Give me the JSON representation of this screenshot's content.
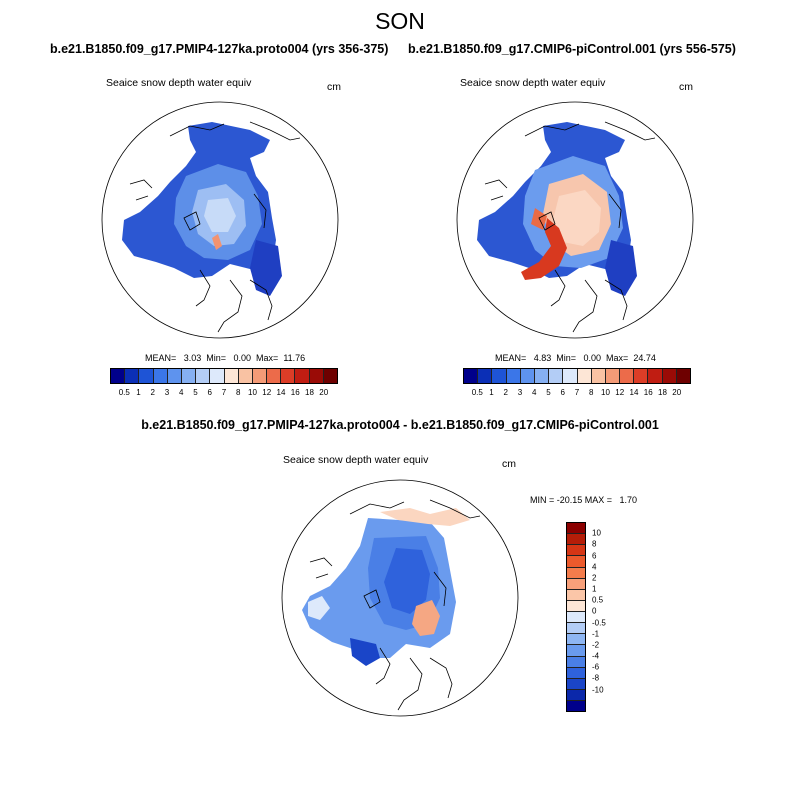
{
  "season": "SON",
  "panels": [
    {
      "case_title": "b.e21.B1850.f09_g17.PMIP4-127ka.proto004 (yrs 356-375)",
      "var_title": "Seaice snow depth water equiv",
      "units": "cm",
      "stats": "MEAN=   3.03  Min=   0.00  Max=  11.76"
    },
    {
      "case_title": "b.e21.B1850.f09_g17.CMIP6-piControl.001 (yrs 556-575)",
      "var_title": "Seaice snow depth water equiv",
      "units": "cm",
      "stats": "MEAN=   4.83  Min=   0.00  Max=  24.74"
    },
    {
      "case_title": "b.e21.B1850.f09_g17.PMIP4-127ka.proto004 - b.e21.B1850.f09_g17.CMIP6-piControl.001",
      "var_title": "Seaice snow depth water equiv",
      "units": "cm",
      "minmax": "MIN = -20.15 MAX =   1.70"
    }
  ],
  "colorbar_abs": {
    "colors": [
      "#00008b",
      "#0b2fb6",
      "#1e54d6",
      "#3b76e8",
      "#5e93ee",
      "#86b0f2",
      "#b3cdf6",
      "#dde9fb",
      "#fde6d6",
      "#f9c2a3",
      "#f49b77",
      "#ec6b4a",
      "#dc3d27",
      "#c01d12",
      "#9a0b06",
      "#6e0000"
    ],
    "labels": [
      "0.5",
      "1",
      "2",
      "3",
      "4",
      "5",
      "6",
      "7",
      "8",
      "10",
      "12",
      "14",
      "16",
      "18",
      "20"
    ]
  },
  "colorbar_diff": {
    "colors": [
      "#8b0000",
      "#b51d08",
      "#d63615",
      "#ec5a2c",
      "#f47c4c",
      "#f8a07a",
      "#fbc6a8",
      "#fde6d6",
      "#dde9fb",
      "#b3cdf6",
      "#8eb6f3",
      "#6a9bee",
      "#4a7fe6",
      "#2f62dc",
      "#1a45c8",
      "#0b28aa",
      "#00008b"
    ],
    "labels": [
      "10",
      "8",
      "6",
      "4",
      "2",
      "1",
      "0.5",
      "0",
      "-0.5",
      "-1",
      "-2",
      "-4",
      "-6",
      "-8",
      "-10"
    ]
  },
  "chart_data": [
    {
      "type": "heatmap",
      "title": "b.e21.B1850.f09_g17.PMIP4-127ka.proto004 (yrs 356-375)",
      "subtitle": "Seaice snow depth water equiv",
      "units": "cm",
      "projection": "north polar stereographic",
      "mean": 3.03,
      "min": 0.0,
      "max": 11.76,
      "contour_levels": [
        0.5,
        1,
        2,
        3,
        4,
        5,
        6,
        7,
        8,
        10,
        12,
        14,
        16,
        18,
        20
      ]
    },
    {
      "type": "heatmap",
      "title": "b.e21.B1850.f09_g17.CMIP6-piControl.001 (yrs 556-575)",
      "subtitle": "Seaice snow depth water equiv",
      "units": "cm",
      "projection": "north polar stereographic",
      "mean": 4.83,
      "min": 0.0,
      "max": 24.74,
      "contour_levels": [
        0.5,
        1,
        2,
        3,
        4,
        5,
        6,
        7,
        8,
        10,
        12,
        14,
        16,
        18,
        20
      ]
    },
    {
      "type": "heatmap",
      "title": "b.e21.B1850.f09_g17.PMIP4-127ka.proto004 - b.e21.B1850.f09_g17.CMIP6-piControl.001",
      "subtitle": "Seaice snow depth water equiv",
      "units": "cm",
      "projection": "north polar stereographic",
      "min": -20.15,
      "max": 1.7,
      "contour_levels": [
        -10,
        -8,
        -6,
        -4,
        -2,
        -1,
        -0.5,
        0,
        0.5,
        1,
        2,
        4,
        6,
        8,
        10
      ]
    }
  ]
}
